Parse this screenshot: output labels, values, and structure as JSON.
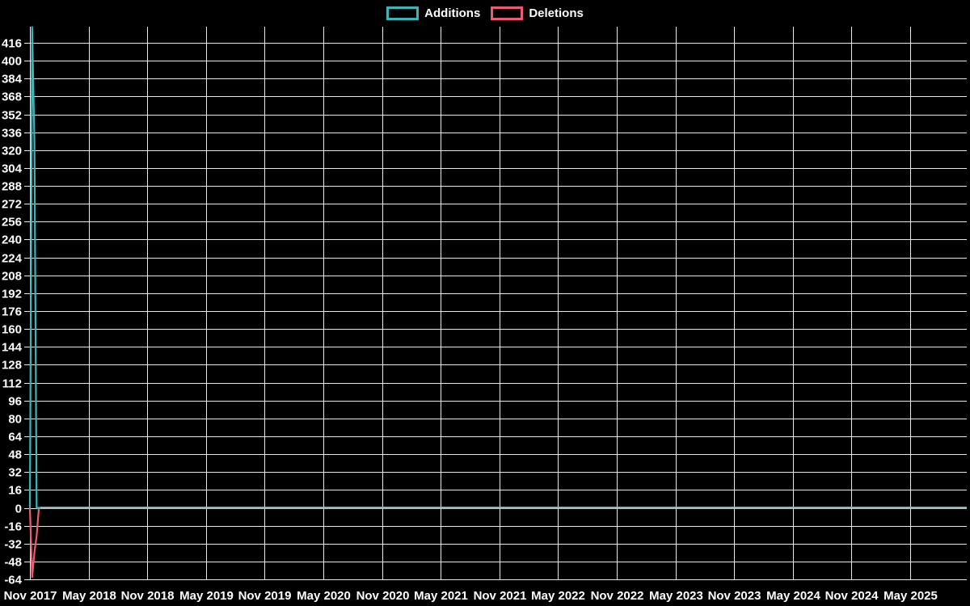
{
  "theme": {
    "background": "#000000",
    "grid_color": "#e8e8e8",
    "text_color": "#ffffff",
    "additions_color": "#3cb4b8",
    "deletions_color": "#ee5a72",
    "zero_line_blend_color": "#9dc2c4"
  },
  "legend": {
    "items": [
      {
        "label": "Additions",
        "color": "#3cb4b8"
      },
      {
        "label": "Deletions",
        "color": "#ee5a72"
      }
    ]
  },
  "chart_data": {
    "type": "line",
    "title": "",
    "xlabel": "",
    "ylabel": "",
    "legend_position": "top-center",
    "grid": true,
    "x_axis": {
      "tick_labels": [
        "Nov 2017",
        "May 2018",
        "Nov 2018",
        "May 2019",
        "Nov 2019",
        "May 2020",
        "Nov 2020",
        "May 2021",
        "Nov 2021",
        "May 2022",
        "Nov 2022",
        "May 2023",
        "Nov 2023",
        "May 2024",
        "Nov 2024",
        "May 2025"
      ],
      "tick_interval": "6 months",
      "extends_past_last_tick": true
    },
    "y_axis": {
      "min": -64,
      "max": 431,
      "tick_step": 16,
      "tick_values": [
        416,
        400,
        384,
        368,
        352,
        336,
        320,
        304,
        288,
        272,
        256,
        240,
        224,
        208,
        192,
        176,
        160,
        144,
        128,
        112,
        96,
        80,
        64,
        48,
        32,
        16,
        0,
        -16,
        -32,
        -48,
        -64
      ]
    },
    "series": [
      {
        "name": "Additions",
        "color": "#3cb4b8",
        "x_unit": "week-index from Nov 2017",
        "points_by_week": [
          [
            0,
            0
          ],
          [
            1,
            430
          ],
          [
            2,
            328
          ],
          [
            3,
            0
          ]
        ],
        "flat_value_after": 0,
        "flat_until": "right edge (mid 2025)"
      },
      {
        "name": "Deletions",
        "color": "#ee5a72",
        "x_unit": "week-index from Nov 2017",
        "points_by_week": [
          [
            0,
            0
          ],
          [
            1,
            -62
          ],
          [
            2,
            -40
          ],
          [
            3,
            -25
          ],
          [
            4,
            0
          ]
        ],
        "flat_value_after": 0,
        "flat_until": "right edge (mid 2025)"
      }
    ]
  }
}
